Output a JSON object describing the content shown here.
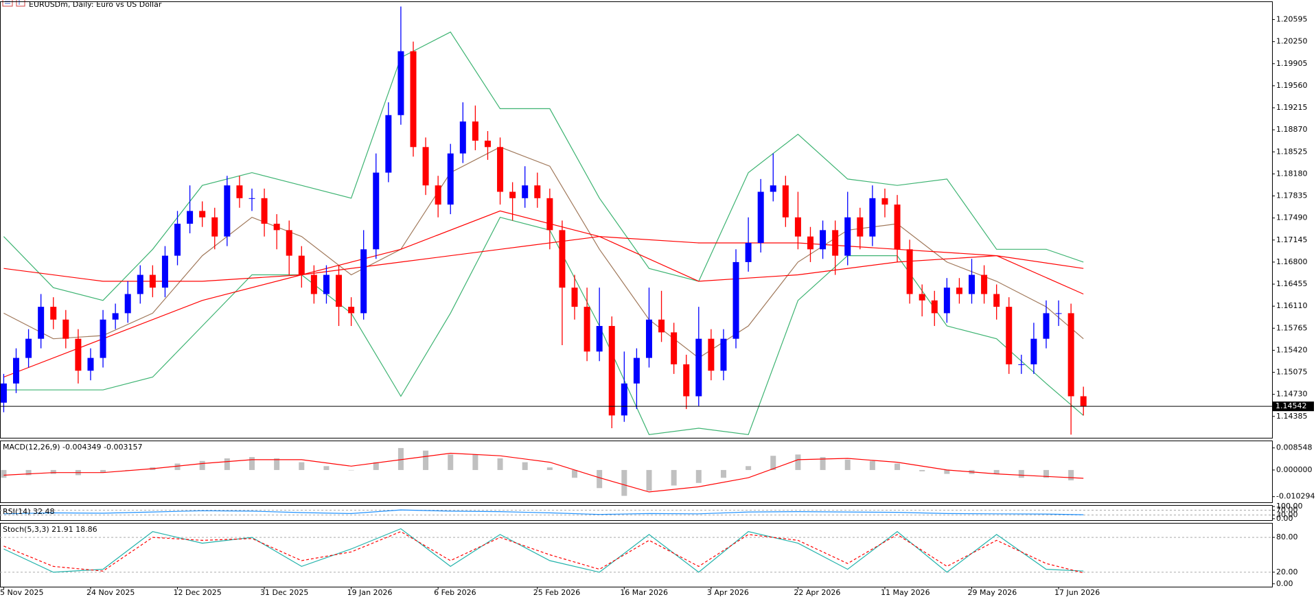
{
  "chart_data": [
    {
      "type": "candlestick",
      "title": "EURUSDm, Daily:  Euro vs US Dollar",
      "xlim": [
        -0.3,
        102.2
      ],
      "ylim": [
        1.1405,
        1.2088
      ],
      "yticks": [
        {
          "value": 1.20595,
          "label": "1.20595"
        },
        {
          "value": 1.2025,
          "label": "1.20250"
        },
        {
          "value": 1.19905,
          "label": "1.19905"
        },
        {
          "value": 1.1956,
          "label": "1.19560"
        },
        {
          "value": 1.19215,
          "label": "1.19215"
        },
        {
          "value": 1.1887,
          "label": "1.18870"
        },
        {
          "value": 1.18525,
          "label": "1.18525"
        },
        {
          "value": 1.1818,
          "label": "1.18180"
        },
        {
          "value": 1.17835,
          "label": "1.17835"
        },
        {
          "value": 1.1749,
          "label": "1.17490"
        },
        {
          "value": 1.17145,
          "label": "1.17145"
        },
        {
          "value": 1.168,
          "label": "1.16800"
        },
        {
          "value": 1.16455,
          "label": "1.16455"
        },
        {
          "value": 1.1611,
          "label": "1.16110"
        },
        {
          "value": 1.15765,
          "label": "1.15765"
        },
        {
          "value": 1.1542,
          "label": "1.15420"
        },
        {
          "value": 1.15075,
          "label": "1.15075"
        },
        {
          "value": 1.1473,
          "label": "1.14730"
        },
        {
          "value": 1.14385,
          "label": "1.14385"
        }
      ],
      "up_color": "#0000ff",
      "down_color": "#ff0000",
      "open": [
        1.146,
        1.149,
        1.153,
        1.156,
        1.161,
        1.159,
        1.156,
        1.151,
        1.153,
        1.159,
        1.16,
        1.163,
        1.166,
        1.164,
        1.169,
        1.174,
        1.176,
        1.175,
        1.172,
        1.18,
        1.178,
        1.178,
        1.174,
        1.173,
        1.169,
        1.166,
        1.163,
        1.166,
        1.161,
        1.16,
        1.17,
        1.182,
        1.191,
        1.201,
        1.186,
        1.18,
        1.177,
        1.185,
        1.19,
        1.187,
        1.186,
        1.179,
        1.178,
        1.18,
        1.178,
        1.173,
        1.164,
        1.161,
        1.154,
        1.158,
        1.144,
        1.149,
        1.153,
        1.159,
        1.157,
        1.152,
        1.147,
        1.156,
        1.151,
        1.156,
        1.168,
        1.171,
        1.179,
        1.18,
        1.175,
        1.172,
        1.17,
        1.173,
        1.169,
        1.175,
        1.172,
        1.178,
        1.177,
        1.17,
        1.163,
        1.162,
        1.16,
        1.164,
        1.163,
        1.166,
        1.163,
        1.161,
        1.152,
        1.152,
        1.156,
        1.16,
        1.16,
        1.147
      ],
      "high": [
        1.1505,
        1.1545,
        1.1575,
        1.163,
        1.1625,
        1.1605,
        1.1575,
        1.1545,
        1.1605,
        1.1615,
        1.165,
        1.1675,
        1.1675,
        1.1705,
        1.176,
        1.18,
        1.1775,
        1.1765,
        1.1815,
        1.1815,
        1.1795,
        1.1795,
        1.1755,
        1.1745,
        1.1705,
        1.1675,
        1.1675,
        1.1675,
        1.1625,
        1.173,
        1.185,
        1.193,
        1.208,
        1.2025,
        1.1875,
        1.1815,
        1.1865,
        1.193,
        1.1925,
        1.1885,
        1.1875,
        1.1805,
        1.183,
        1.182,
        1.1795,
        1.1745,
        1.166,
        1.164,
        1.164,
        1.1595,
        1.154,
        1.1545,
        1.164,
        1.1635,
        1.1585,
        1.1535,
        1.161,
        1.1575,
        1.1575,
        1.17,
        1.175,
        1.181,
        1.185,
        1.1815,
        1.179,
        1.1735,
        1.1745,
        1.1745,
        1.179,
        1.1765,
        1.18,
        1.1795,
        1.1785,
        1.1715,
        1.1645,
        1.1635,
        1.1655,
        1.1655,
        1.1685,
        1.1675,
        1.1645,
        1.1625,
        1.1535,
        1.1585,
        1.162,
        1.162,
        1.1615,
        1.1485
      ],
      "low": [
        1.1445,
        1.1475,
        1.1515,
        1.1545,
        1.1575,
        1.1545,
        1.149,
        1.1495,
        1.1515,
        1.1575,
        1.1585,
        1.1615,
        1.1625,
        1.1625,
        1.1675,
        1.1725,
        1.1735,
        1.17,
        1.1705,
        1.1765,
        1.176,
        1.172,
        1.17,
        1.166,
        1.164,
        1.1615,
        1.1615,
        1.158,
        1.158,
        1.159,
        1.1685,
        1.1805,
        1.1895,
        1.1845,
        1.1785,
        1.175,
        1.1755,
        1.1835,
        1.1855,
        1.184,
        1.177,
        1.1745,
        1.1765,
        1.1765,
        1.17,
        1.155,
        1.159,
        1.1525,
        1.1525,
        1.142,
        1.143,
        1.145,
        1.1515,
        1.1555,
        1.1505,
        1.145,
        1.1455,
        1.1495,
        1.1495,
        1.1545,
        1.1665,
        1.1695,
        1.1775,
        1.1735,
        1.17,
        1.168,
        1.1685,
        1.166,
        1.1675,
        1.17,
        1.1705,
        1.175,
        1.168,
        1.1615,
        1.1595,
        1.158,
        1.1585,
        1.1615,
        1.1615,
        1.1615,
        1.159,
        1.1505,
        1.1505,
        1.1505,
        1.1545,
        1.158,
        1.141,
        1.144
      ],
      "close": [
        1.149,
        1.153,
        1.156,
        1.161,
        1.159,
        1.156,
        1.151,
        1.153,
        1.159,
        1.16,
        1.163,
        1.166,
        1.164,
        1.169,
        1.174,
        1.176,
        1.175,
        1.172,
        1.18,
        1.178,
        1.178,
        1.174,
        1.173,
        1.169,
        1.166,
        1.163,
        1.166,
        1.161,
        1.16,
        1.17,
        1.182,
        1.191,
        1.201,
        1.186,
        1.18,
        1.177,
        1.185,
        1.19,
        1.187,
        1.186,
        1.179,
        1.178,
        1.18,
        1.178,
        1.173,
        1.164,
        1.161,
        1.154,
        1.158,
        1.144,
        1.149,
        1.153,
        1.159,
        1.157,
        1.152,
        1.147,
        1.156,
        1.151,
        1.156,
        1.168,
        1.171,
        1.179,
        1.18,
        1.175,
        1.172,
        1.17,
        1.173,
        1.169,
        1.175,
        1.172,
        1.178,
        1.177,
        1.17,
        1.163,
        1.162,
        1.16,
        1.164,
        1.163,
        1.166,
        1.163,
        1.161,
        1.152,
        1.152,
        1.156,
        1.16,
        1.16,
        1.147,
        1.1454
      ],
      "last_price": 1.14542,
      "series": [
        {
          "color": "#3cb371",
          "x": [
            0,
            4,
            8,
            12,
            16,
            20,
            24,
            28,
            32,
            36,
            40,
            44,
            48,
            52,
            56,
            60,
            64,
            68,
            72,
            76,
            80,
            84,
            87
          ],
          "values": [
            1.172,
            1.164,
            1.162,
            1.17,
            1.18,
            1.182,
            1.18,
            1.178,
            1.2,
            1.204,
            1.192,
            1.192,
            1.178,
            1.167,
            1.165,
            1.182,
            1.188,
            1.181,
            1.18,
            1.181,
            1.17,
            1.17,
            1.168
          ]
        },
        {
          "color": "#3cb371",
          "x": [
            0,
            4,
            8,
            12,
            16,
            20,
            24,
            28,
            32,
            36,
            40,
            44,
            48,
            52,
            56,
            60,
            64,
            68,
            72,
            76,
            80,
            84,
            87
          ],
          "values": [
            1.148,
            1.148,
            1.148,
            1.15,
            1.158,
            1.166,
            1.166,
            1.16,
            1.147,
            1.16,
            1.175,
            1.173,
            1.158,
            1.141,
            1.142,
            1.141,
            1.162,
            1.169,
            1.169,
            1.158,
            1.156,
            1.149,
            1.144
          ]
        },
        {
          "color": "#a0785a",
          "x": [
            0,
            4,
            8,
            12,
            16,
            20,
            24,
            28,
            32,
            36,
            40,
            44,
            48,
            52,
            56,
            60,
            64,
            68,
            72,
            76,
            80,
            84,
            87
          ],
          "values": [
            1.16,
            1.156,
            1.1565,
            1.16,
            1.169,
            1.175,
            1.172,
            1.166,
            1.17,
            1.182,
            1.186,
            1.183,
            1.17,
            1.159,
            1.153,
            1.158,
            1.168,
            1.173,
            1.174,
            1.168,
            1.165,
            1.161,
            1.156
          ]
        },
        {
          "color": "#ff0000",
          "x": [
            0,
            8,
            16,
            24,
            32,
            40,
            48,
            56,
            64,
            72,
            80,
            87
          ],
          "values": [
            1.15,
            1.156,
            1.162,
            1.166,
            1.17,
            1.176,
            1.172,
            1.165,
            1.166,
            1.168,
            1.169,
            1.163
          ]
        },
        {
          "color": "#ff0000",
          "x": [
            0,
            8,
            16,
            24,
            32,
            40,
            48,
            56,
            64,
            72,
            80,
            87
          ],
          "values": [
            1.167,
            1.165,
            1.165,
            1.166,
            1.168,
            1.17,
            1.172,
            1.171,
            1.171,
            1.17,
            1.169,
            1.167
          ]
        }
      ]
    },
    {
      "type": "bar",
      "title": "MACD(12,26,9) -0.004349 -0.003157",
      "ylim": [
        -0.0125,
        0.0114
      ],
      "yticks": [
        0.008548,
        {
          "value": 0,
          "label": "0.000000"
        },
        -0.010294
      ],
      "color": "#c0c0c0",
      "x": [
        0,
        2,
        4,
        6,
        8,
        10,
        12,
        14,
        16,
        18,
        20,
        22,
        24,
        26,
        28,
        30,
        32,
        34,
        36,
        38,
        40,
        42,
        44,
        46,
        48,
        50,
        52,
        54,
        56,
        58,
        60,
        62,
        64,
        66,
        68,
        70,
        72,
        74,
        76,
        78,
        80,
        82,
        84,
        86
      ],
      "values": [
        -0.003,
        -0.002,
        -0.0015,
        -0.002,
        -0.001,
        0.0,
        0.001,
        0.0025,
        0.0035,
        0.0045,
        0.005,
        0.0045,
        0.003,
        0.0015,
        0.0,
        0.003,
        0.0085,
        0.0075,
        0.006,
        0.006,
        0.0045,
        0.003,
        0.001,
        -0.003,
        -0.007,
        -0.01,
        -0.008,
        -0.006,
        -0.005,
        -0.003,
        0.0015,
        0.0055,
        0.006,
        0.005,
        0.004,
        0.0035,
        0.0025,
        -0.0005,
        -0.0015,
        -0.0015,
        -0.0015,
        -0.003,
        -0.003,
        -0.004
      ],
      "series": [
        {
          "color": "#ff0000",
          "x": [
            0,
            4,
            8,
            12,
            16,
            20,
            24,
            28,
            32,
            36,
            40,
            44,
            48,
            52,
            56,
            60,
            64,
            68,
            72,
            76,
            80,
            84,
            87
          ],
          "values": [
            -0.002,
            -0.001,
            -0.001,
            0.0005,
            0.0025,
            0.004,
            0.004,
            0.0015,
            0.004,
            0.0065,
            0.0055,
            0.003,
            -0.003,
            -0.0085,
            -0.0065,
            -0.003,
            0.004,
            0.0045,
            0.003,
            0.0,
            -0.0015,
            -0.0025,
            -0.0032
          ]
        }
      ]
    },
    {
      "type": "line",
      "title": "RSI(14) 32.48",
      "ylim": [
        -12,
        112
      ],
      "yticks": [
        {
          "value": 100,
          "label": "100.00"
        },
        {
          "value": 70,
          "label": "70.00"
        },
        {
          "value": 30,
          "label": "30.00"
        },
        {
          "value": 0,
          "label": "0.00"
        }
      ],
      "series": [
        {
          "color": "#1e90ff",
          "x": [
            0,
            4,
            8,
            12,
            16,
            20,
            24,
            28,
            32,
            36,
            40,
            44,
            48,
            52,
            56,
            60,
            64,
            68,
            72,
            76,
            80,
            84,
            87
          ],
          "values": [
            40,
            48,
            45,
            55,
            65,
            62,
            50,
            42,
            72,
            62,
            58,
            48,
            35,
            42,
            40,
            55,
            58,
            55,
            52,
            42,
            40,
            38,
            32.48
          ]
        }
      ]
    },
    {
      "type": "line",
      "title": "Stoch(5,3,3) 21.91 18.86",
      "ylim": [
        -5,
        105
      ],
      "yticks": [
        {
          "value": 80,
          "label": "80.00"
        },
        {
          "value": 20,
          "label": "20.00"
        },
        {
          "value": 0,
          "label": "0.00"
        }
      ],
      "xticks": [
        {
          "value": 0,
          "label": "5 Nov 2025"
        },
        {
          "value": 7,
          "label": "24 Nov 2025"
        },
        {
          "value": 14,
          "label": "12 Dec 2025"
        },
        {
          "value": 21,
          "label": "31 Dec 2025"
        },
        {
          "value": 28,
          "label": "19 Jan 2026"
        },
        {
          "value": 35,
          "label": "6 Feb 2026"
        },
        {
          "value": 43,
          "label": "25 Feb 2026"
        },
        {
          "value": 50,
          "label": "16 Mar 2026"
        },
        {
          "value": 57,
          "label": "3 Apr 2026"
        },
        {
          "value": 64,
          "label": "22 Apr 2026"
        },
        {
          "value": 71,
          "label": "11 May 2026"
        },
        {
          "value": 78,
          "label": "29 May 2026"
        },
        {
          "value": 85,
          "label": "17 Jun 2026"
        }
      ],
      "series": [
        {
          "color": "#20b2aa",
          "x": [
            0,
            4,
            8,
            12,
            16,
            20,
            24,
            28,
            32,
            36,
            40,
            44,
            48,
            52,
            56,
            60,
            64,
            68,
            72,
            76,
            80,
            84,
            87
          ],
          "values": [
            60,
            20,
            25,
            90,
            70,
            80,
            30,
            60,
            95,
            30,
            85,
            40,
            20,
            85,
            20,
            90,
            70,
            25,
            90,
            20,
            85,
            25,
            21.91
          ]
        },
        {
          "color": "#ff0000",
          "dash": true,
          "x": [
            0,
            4,
            8,
            12,
            16,
            20,
            24,
            28,
            32,
            36,
            40,
            44,
            48,
            52,
            56,
            60,
            64,
            68,
            72,
            76,
            80,
            84,
            87
          ],
          "values": [
            65,
            30,
            22,
            80,
            75,
            78,
            40,
            55,
            90,
            40,
            80,
            50,
            25,
            75,
            30,
            85,
            75,
            35,
            85,
            30,
            75,
            35,
            18.86
          ]
        }
      ]
    }
  ]
}
